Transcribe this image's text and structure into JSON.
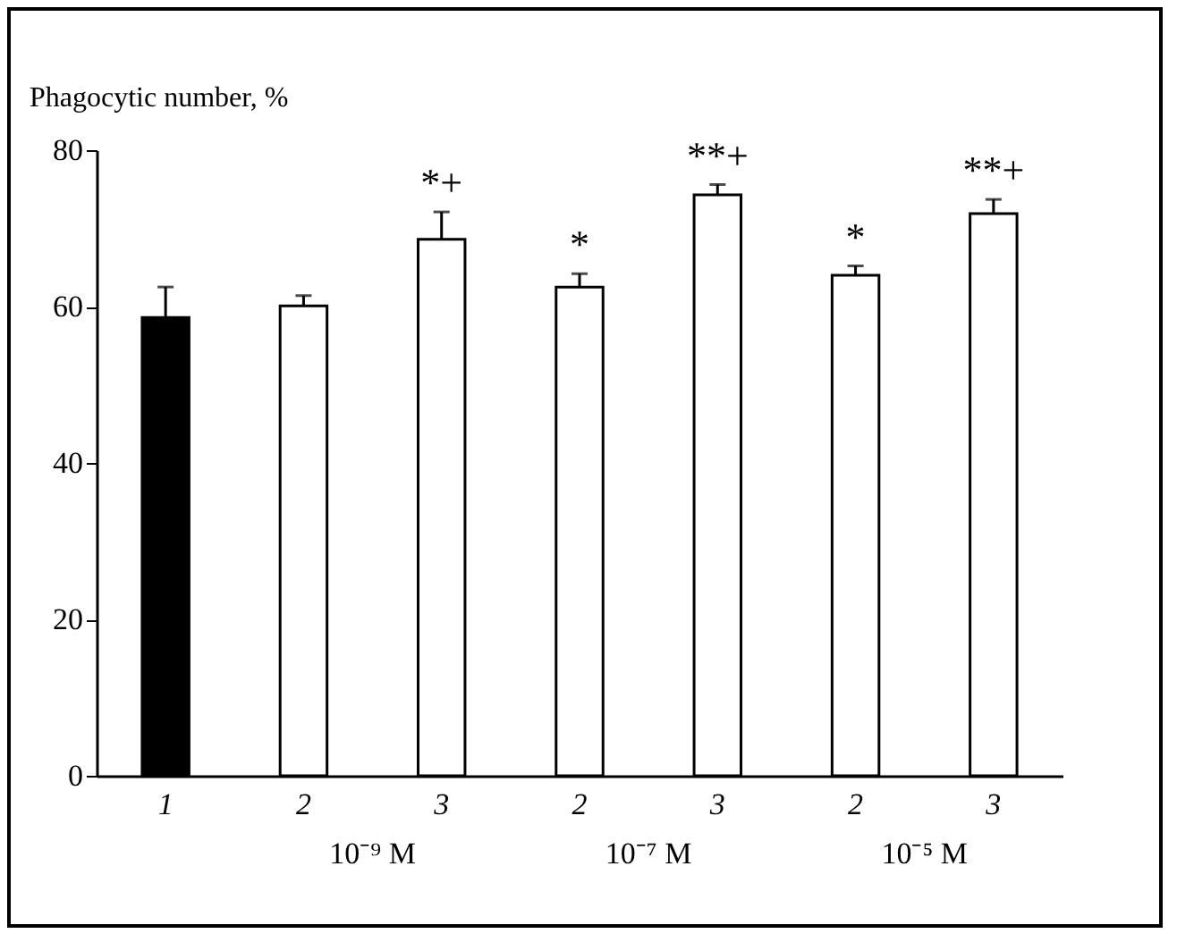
{
  "chart_data": {
    "type": "bar",
    "ylabel": "Phagocytic number, %",
    "categories": [
      "1",
      "2",
      "3",
      "2",
      "3",
      "2",
      "3"
    ],
    "values": [
      58.6,
      60.1,
      68.6,
      62.5,
      74.3,
      64.0,
      71.9
    ],
    "errors": [
      3.9,
      1.3,
      3.5,
      1.7,
      1.3,
      1.2,
      1.8
    ],
    "colors": [
      "#000000",
      "#ffffff",
      "#ffffff",
      "#ffffff",
      "#ffffff",
      "#ffffff",
      "#ffffff"
    ],
    "value_labels": [
      null,
      null,
      "*+",
      "*",
      "**+",
      "*",
      "**+"
    ],
    "annotations": [
      "10⁻⁹ M",
      "10⁻⁷ M",
      "10⁻⁵ M"
    ],
    "ylim": [
      0,
      80
    ],
    "yticks": [
      0,
      20,
      40,
      60,
      80
    ],
    "grid": false
  }
}
